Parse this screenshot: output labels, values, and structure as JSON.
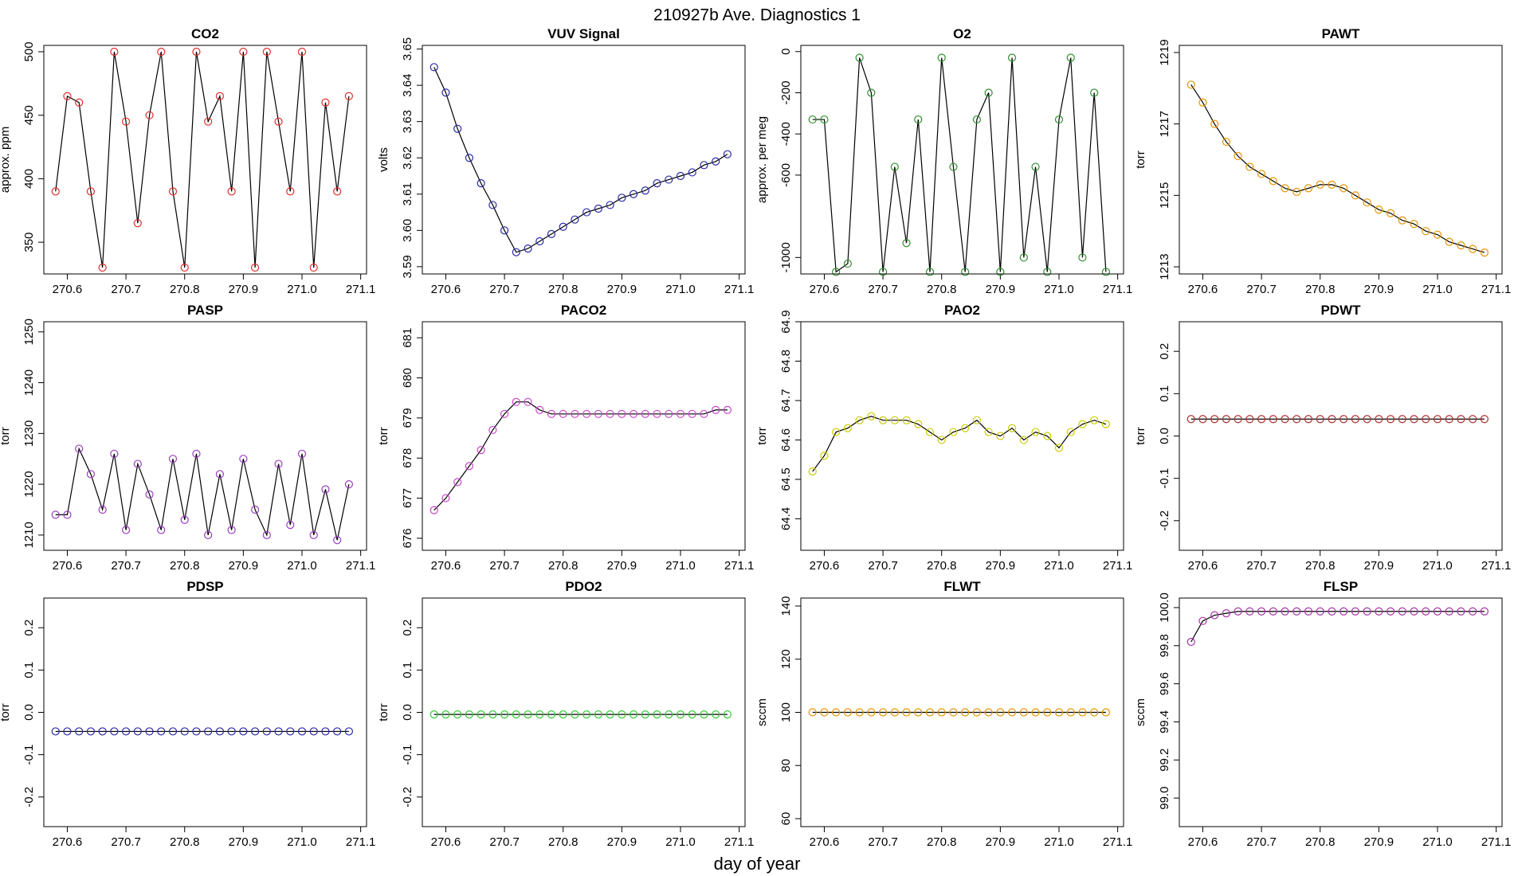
{
  "title": "210927b   Ave. Diagnostics 1",
  "xlabel": "day of year",
  "chart_data": [
    {
      "type": "line",
      "title": "CO2",
      "ylabel": "approx. ppm",
      "x": [
        270.58,
        270.6,
        270.62,
        270.64,
        270.66,
        270.68,
        270.7,
        270.72,
        270.74,
        270.76,
        270.78,
        270.8,
        270.82,
        270.84,
        270.86,
        270.88,
        270.9,
        270.92,
        270.94,
        270.96,
        270.98,
        271.0,
        271.02,
        271.04,
        271.06,
        271.08
      ],
      "xlim": [
        270.56,
        271.11
      ],
      "xticks": [
        270.6,
        270.7,
        270.8,
        270.9,
        {
          "value": 271,
          "label": "271.0"
        },
        271.1
      ],
      "ylim": [
        325,
        505
      ],
      "yticks": [
        350,
        400,
        450,
        500
      ],
      "series": [
        {
          "color": "#e0302f",
          "values": [
            390,
            465,
            460,
            390,
            330,
            500,
            445,
            365,
            450,
            500,
            390,
            330,
            500,
            445,
            465,
            390,
            500,
            330,
            500,
            445,
            390,
            500,
            330,
            460,
            390,
            465
          ]
        }
      ]
    },
    {
      "type": "line",
      "title": "VUV Signal",
      "ylabel": "volts",
      "x": [
        270.58,
        270.6,
        270.62,
        270.64,
        270.66,
        270.68,
        270.7,
        270.72,
        270.74,
        270.76,
        270.78,
        270.8,
        270.82,
        270.84,
        270.86,
        270.88,
        270.9,
        270.92,
        270.94,
        270.96,
        270.98,
        271.0,
        271.02,
        271.04,
        271.06,
        271.08
      ],
      "xlim": [
        270.56,
        271.11
      ],
      "xticks": [
        270.6,
        270.7,
        270.8,
        270.9,
        {
          "value": 271,
          "label": "271.0"
        },
        271.1
      ],
      "ylim": [
        3.588,
        3.651
      ],
      "yticks": [
        3.59,
        {
          "value": 3.6,
          "label": "3.60"
        },
        3.61,
        3.62,
        3.63,
        3.64,
        3.65
      ],
      "series": [
        {
          "color": "#2a2aa8",
          "values": [
            3.645,
            3.638,
            3.628,
            3.62,
            3.613,
            3.607,
            3.6,
            3.594,
            3.595,
            3.597,
            3.599,
            3.601,
            3.603,
            3.605,
            3.606,
            3.607,
            3.609,
            3.61,
            3.611,
            3.613,
            3.614,
            3.615,
            3.616,
            3.618,
            3.619,
            3.621
          ]
        }
      ]
    },
    {
      "type": "line",
      "title": "O2",
      "ylabel": "approx. per meg",
      "x": [
        270.58,
        270.6,
        270.62,
        270.64,
        270.66,
        270.68,
        270.7,
        270.72,
        270.74,
        270.76,
        270.78,
        270.8,
        270.82,
        270.84,
        270.86,
        270.88,
        270.9,
        270.92,
        270.94,
        270.96,
        270.98,
        271.0,
        271.02,
        271.04,
        271.06,
        271.08
      ],
      "xlim": [
        270.56,
        271.11
      ],
      "xticks": [
        270.6,
        270.7,
        270.8,
        270.9,
        {
          "value": 271,
          "label": "271.0"
        },
        271.1
      ],
      "ylim": [
        -1080,
        30
      ],
      "yticks": [
        0,
        -200,
        -400,
        -600,
        -1000
      ],
      "series": [
        {
          "color": "#2f8f2f",
          "values": [
            -330,
            -330,
            -1070,
            -1030,
            -30,
            -200,
            -1070,
            -560,
            -930,
            -330,
            -1070,
            -30,
            -560,
            -1070,
            -330,
            -200,
            -1070,
            -30,
            -1000,
            -560,
            -1070,
            -330,
            -30,
            -1000,
            -200,
            -1070
          ]
        }
      ]
    },
    {
      "type": "line",
      "title": "PAWT",
      "ylabel": "torr",
      "x": [
        270.58,
        270.6,
        270.62,
        270.64,
        270.66,
        270.68,
        270.7,
        270.72,
        270.74,
        270.76,
        270.78,
        270.8,
        270.82,
        270.84,
        270.86,
        270.88,
        270.9,
        270.92,
        270.94,
        270.96,
        270.98,
        271.0,
        271.02,
        271.04,
        271.06,
        271.08
      ],
      "xlim": [
        270.56,
        271.11
      ],
      "xticks": [
        270.6,
        270.7,
        270.8,
        270.9,
        {
          "value": 271,
          "label": "271.0"
        },
        271.1
      ],
      "ylim": [
        1212.8,
        1219.2
      ],
      "yticks": [
        1213,
        1215,
        1217,
        1219
      ],
      "series": [
        {
          "color": "#e69500",
          "values": [
            1218.1,
            1217.6,
            1217.0,
            1216.5,
            1216.1,
            1215.8,
            1215.6,
            1215.4,
            1215.2,
            1215.1,
            1215.2,
            1215.3,
            1215.3,
            1215.2,
            1215.0,
            1214.8,
            1214.6,
            1214.5,
            1214.3,
            1214.2,
            1214.0,
            1213.9,
            1213.7,
            1213.6,
            1213.5,
            1213.4
          ]
        }
      ]
    },
    {
      "type": "line",
      "title": "PASP",
      "ylabel": "torr",
      "x": [
        270.58,
        270.6,
        270.62,
        270.64,
        270.66,
        270.68,
        270.7,
        270.72,
        270.74,
        270.76,
        270.78,
        270.8,
        270.82,
        270.84,
        270.86,
        270.88,
        270.9,
        270.92,
        270.94,
        270.96,
        270.98,
        271.0,
        271.02,
        271.04,
        271.06,
        271.08
      ],
      "xlim": [
        270.56,
        271.11
      ],
      "xticks": [
        270.6,
        270.7,
        270.8,
        270.9,
        {
          "value": 271,
          "label": "271.0"
        },
        271.1
      ],
      "ylim": [
        1207,
        1252
      ],
      "yticks": [
        1210,
        1220,
        1230,
        1240,
        1250
      ],
      "series": [
        {
          "color": "#9a3fc0",
          "values": [
            1214,
            1214,
            1227,
            1222,
            1215,
            1226,
            1211,
            1224,
            1218,
            1211,
            1225,
            1213,
            1226,
            1210,
            1222,
            1211,
            1225,
            1215,
            1210,
            1224,
            1212,
            1226,
            1210,
            1219,
            1209,
            1220
          ]
        }
      ]
    },
    {
      "type": "line",
      "title": "PACO2",
      "ylabel": "torr",
      "x": [
        270.58,
        270.6,
        270.62,
        270.64,
        270.66,
        270.68,
        270.7,
        270.72,
        270.74,
        270.76,
        270.78,
        270.8,
        270.82,
        270.84,
        270.86,
        270.88,
        270.9,
        270.92,
        270.94,
        270.96,
        270.98,
        271.0,
        271.02,
        271.04,
        271.06,
        271.08
      ],
      "xlim": [
        270.56,
        271.11
      ],
      "xticks": [
        270.6,
        270.7,
        270.8,
        270.9,
        {
          "value": 271,
          "label": "271.0"
        },
        271.1
      ],
      "ylim": [
        675.7,
        681.4
      ],
      "yticks": [
        676,
        677,
        678,
        679,
        680,
        681
      ],
      "series": [
        {
          "color": "#cc44cc",
          "values": [
            676.7,
            677.0,
            677.4,
            677.8,
            678.2,
            678.7,
            679.1,
            679.4,
            679.4,
            679.2,
            679.1,
            679.1,
            679.1,
            679.1,
            679.1,
            679.1,
            679.1,
            679.1,
            679.1,
            679.1,
            679.1,
            679.1,
            679.1,
            679.1,
            679.2,
            679.2
          ]
        }
      ]
    },
    {
      "type": "line",
      "title": "PAO2",
      "ylabel": "torr",
      "x": [
        270.58,
        270.6,
        270.62,
        270.64,
        270.66,
        270.68,
        270.7,
        270.72,
        270.74,
        270.76,
        270.78,
        270.8,
        270.82,
        270.84,
        270.86,
        270.88,
        270.9,
        270.92,
        270.94,
        270.96,
        270.98,
        271.0,
        271.02,
        271.04,
        271.06,
        271.08
      ],
      "xlim": [
        270.56,
        271.11
      ],
      "xticks": [
        270.6,
        270.7,
        270.8,
        270.9,
        {
          "value": 271,
          "label": "271.0"
        },
        271.1
      ],
      "ylim": [
        64.32,
        64.9
      ],
      "yticks": [
        64.4,
        64.5,
        64.6,
        64.7,
        64.8,
        64.9
      ],
      "series": [
        {
          "color": "#cccc00",
          "values": [
            64.52,
            64.56,
            64.62,
            64.63,
            64.65,
            64.66,
            64.65,
            64.65,
            64.65,
            64.64,
            64.62,
            64.6,
            64.62,
            64.63,
            64.65,
            64.62,
            64.61,
            64.63,
            64.6,
            64.62,
            64.61,
            64.58,
            64.62,
            64.64,
            64.65,
            64.64
          ]
        }
      ]
    },
    {
      "type": "line",
      "title": "PDWT",
      "ylabel": "torr",
      "x": [
        270.58,
        270.6,
        270.62,
        270.64,
        270.66,
        270.68,
        270.7,
        270.72,
        270.74,
        270.76,
        270.78,
        270.8,
        270.82,
        270.84,
        270.86,
        270.88,
        270.9,
        270.92,
        270.94,
        270.96,
        270.98,
        271.0,
        271.02,
        271.04,
        271.06,
        271.08
      ],
      "xlim": [
        270.56,
        271.11
      ],
      "xticks": [
        270.6,
        270.7,
        270.8,
        270.9,
        {
          "value": 271,
          "label": "271.0"
        },
        271.1
      ],
      "ylim": [
        -0.27,
        0.27
      ],
      "yticks": [
        -0.2,
        -0.1,
        {
          "value": 0,
          "label": "0.0"
        },
        0.1,
        0.2
      ],
      "series": [
        {
          "color": "#b03030",
          "values": [
            0.04,
            0.04,
            0.04,
            0.04,
            0.04,
            0.04,
            0.04,
            0.04,
            0.04,
            0.04,
            0.04,
            0.04,
            0.04,
            0.04,
            0.04,
            0.04,
            0.04,
            0.04,
            0.04,
            0.04,
            0.04,
            0.04,
            0.04,
            0.04,
            0.04,
            0.04
          ]
        }
      ]
    },
    {
      "type": "line",
      "title": "PDSP",
      "ylabel": "torr",
      "x": [
        270.58,
        270.6,
        270.62,
        270.64,
        270.66,
        270.68,
        270.7,
        270.72,
        270.74,
        270.76,
        270.78,
        270.8,
        270.82,
        270.84,
        270.86,
        270.88,
        270.9,
        270.92,
        270.94,
        270.96,
        270.98,
        271.0,
        271.02,
        271.04,
        271.06,
        271.08
      ],
      "xlim": [
        270.56,
        271.11
      ],
      "xticks": [
        270.6,
        270.7,
        270.8,
        270.9,
        {
          "value": 271,
          "label": "271.0"
        },
        271.1
      ],
      "ylim": [
        -0.27,
        0.27
      ],
      "yticks": [
        -0.2,
        -0.1,
        {
          "value": 0,
          "label": "0.0"
        },
        0.1,
        0.2
      ],
      "series": [
        {
          "color": "#2a2aa8",
          "values": [
            -0.045,
            -0.045,
            -0.045,
            -0.045,
            -0.045,
            -0.045,
            -0.045,
            -0.045,
            -0.045,
            -0.045,
            -0.045,
            -0.045,
            -0.045,
            -0.045,
            -0.045,
            -0.045,
            -0.045,
            -0.045,
            -0.045,
            -0.045,
            -0.045,
            -0.045,
            -0.045,
            -0.045,
            -0.045,
            -0.045
          ]
        }
      ]
    },
    {
      "type": "line",
      "title": "PDO2",
      "ylabel": "torr",
      "x": [
        270.58,
        270.6,
        270.62,
        270.64,
        270.66,
        270.68,
        270.7,
        270.72,
        270.74,
        270.76,
        270.78,
        270.8,
        270.82,
        270.84,
        270.86,
        270.88,
        270.9,
        270.92,
        270.94,
        270.96,
        270.98,
        271.0,
        271.02,
        271.04,
        271.06,
        271.08
      ],
      "xlim": [
        270.56,
        271.11
      ],
      "xticks": [
        270.6,
        270.7,
        270.8,
        270.9,
        {
          "value": 271,
          "label": "271.0"
        },
        271.1
      ],
      "ylim": [
        -0.27,
        0.27
      ],
      "yticks": [
        -0.2,
        -0.1,
        {
          "value": 0,
          "label": "0.0"
        },
        0.1,
        0.2
      ],
      "series": [
        {
          "color": "#33cc33",
          "values": [
            -0.005,
            -0.005,
            -0.005,
            -0.005,
            -0.005,
            -0.005,
            -0.005,
            -0.005,
            -0.005,
            -0.005,
            -0.005,
            -0.005,
            -0.005,
            -0.005,
            -0.005,
            -0.005,
            -0.005,
            -0.005,
            -0.005,
            -0.005,
            -0.005,
            -0.005,
            -0.005,
            -0.005,
            -0.005,
            -0.005
          ]
        }
      ]
    },
    {
      "type": "line",
      "title": "FLWT",
      "ylabel": "sccm",
      "x": [
        270.58,
        270.6,
        270.62,
        270.64,
        270.66,
        270.68,
        270.7,
        270.72,
        270.74,
        270.76,
        270.78,
        270.8,
        270.82,
        270.84,
        270.86,
        270.88,
        270.9,
        270.92,
        270.94,
        270.96,
        270.98,
        271.0,
        271.02,
        271.04,
        271.06,
        271.08
      ],
      "xlim": [
        270.56,
        271.11
      ],
      "xticks": [
        270.6,
        270.7,
        270.8,
        270.9,
        {
          "value": 271,
          "label": "271.0"
        },
        271.1
      ],
      "ylim": [
        57,
        143
      ],
      "yticks": [
        60,
        80,
        100,
        120,
        140
      ],
      "series": [
        {
          "color": "#e69500",
          "values": [
            100,
            100,
            100,
            100,
            100,
            100,
            100,
            100,
            100,
            100,
            100,
            100,
            100,
            100,
            100,
            100,
            100,
            100,
            100,
            100,
            100,
            100,
            100,
            100,
            100,
            100
          ]
        }
      ]
    },
    {
      "type": "line",
      "title": "FLSP",
      "ylabel": "sccm",
      "x": [
        270.58,
        270.6,
        270.62,
        270.64,
        270.66,
        270.68,
        270.7,
        270.72,
        270.74,
        270.76,
        270.78,
        270.8,
        270.82,
        270.84,
        270.86,
        270.88,
        270.9,
        270.92,
        270.94,
        270.96,
        270.98,
        271.0,
        271.02,
        271.04,
        271.06,
        271.08
      ],
      "xlim": [
        270.56,
        271.11
      ],
      "xticks": [
        270.6,
        270.7,
        270.8,
        270.9,
        {
          "value": 271,
          "label": "271.0"
        },
        271.1
      ],
      "ylim": [
        98.85,
        100.05
      ],
      "yticks": [
        {
          "value": 99,
          "label": "99.0"
        },
        99.2,
        99.4,
        99.6,
        99.8,
        {
          "value": 100,
          "label": "100.0"
        }
      ],
      "series": [
        {
          "color": "#aa33aa",
          "values": [
            99.82,
            99.93,
            99.96,
            99.97,
            99.98,
            99.98,
            99.98,
            99.98,
            99.98,
            99.98,
            99.98,
            99.98,
            99.98,
            99.98,
            99.98,
            99.98,
            99.98,
            99.98,
            99.98,
            99.98,
            99.98,
            99.98,
            99.98,
            99.98,
            99.98,
            99.98
          ]
        }
      ]
    }
  ]
}
